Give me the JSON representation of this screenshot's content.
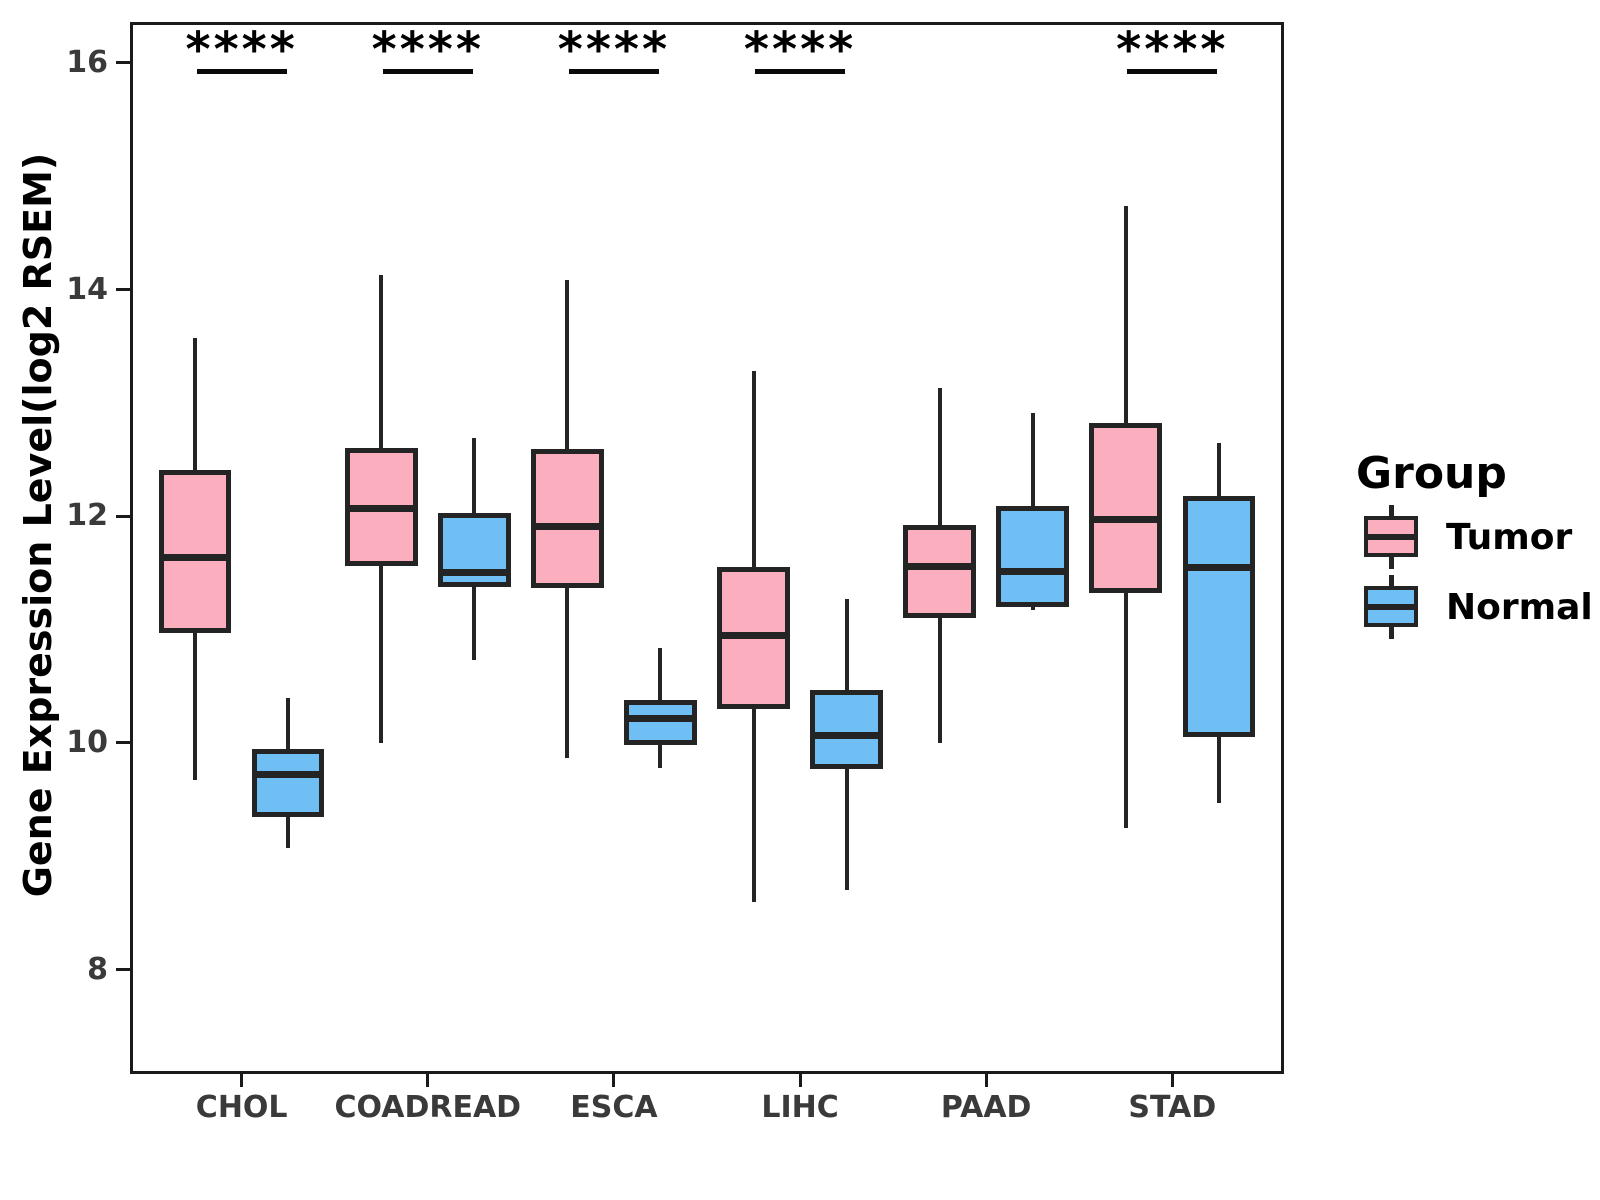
{
  "chart_data": {
    "type": "boxplot",
    "ylabel": "Gene Expression Level(log2 RSEM)",
    "categories": [
      "CHOL",
      "COADREAD",
      "ESCA",
      "LIHC",
      "PAAD",
      "STAD"
    ],
    "yticks": [
      16,
      14,
      12,
      10,
      8
    ],
    "ylim": [
      7.08,
      16.36
    ],
    "grid": "off",
    "colors": {
      "tumor_fill": "#FAAEBE",
      "normal_fill": "#6FBFF5",
      "line": "#242424"
    },
    "legend": {
      "title": "Group",
      "position": "right",
      "entries": [
        {
          "label": "Tumor",
          "color": "#FAAEBE"
        },
        {
          "label": "Normal",
          "color": "#6FBFF5"
        }
      ]
    },
    "significance": [
      "****",
      "****",
      "****",
      "****",
      "",
      "****"
    ],
    "series": [
      {
        "name": "Tumor",
        "color": "#FAAEBE",
        "boxes": [
          {
            "low": 9.67,
            "q1": 10.97,
            "med": 11.64,
            "q3": 12.41,
            "high": 13.57
          },
          {
            "low": 10.0,
            "q1": 11.56,
            "med": 12.07,
            "q3": 12.6,
            "high": 14.13
          },
          {
            "low": 9.87,
            "q1": 11.37,
            "med": 11.91,
            "q3": 12.59,
            "high": 14.08
          },
          {
            "low": 8.6,
            "q1": 10.3,
            "med": 10.95,
            "q3": 11.55,
            "high": 13.28
          },
          {
            "low": 10.0,
            "q1": 11.1,
            "med": 11.56,
            "q3": 11.92,
            "high": 13.13
          },
          {
            "low": 9.25,
            "q1": 11.32,
            "med": 11.97,
            "q3": 12.82,
            "high": 14.74
          }
        ]
      },
      {
        "name": "Normal",
        "color": "#6FBFF5",
        "boxes": [
          {
            "low": 9.07,
            "q1": 9.35,
            "med": 9.72,
            "q3": 9.95,
            "high": 10.4
          },
          {
            "low": 10.73,
            "q1": 11.38,
            "med": 11.5,
            "q3": 12.03,
            "high": 12.69
          },
          {
            "low": 9.78,
            "q1": 9.98,
            "med": 10.22,
            "q3": 10.38,
            "high": 10.84
          },
          {
            "low": 8.7,
            "q1": 9.77,
            "med": 10.07,
            "q3": 10.47,
            "high": 11.27
          },
          {
            "low": 11.17,
            "q1": 11.2,
            "med": 11.51,
            "q3": 12.09,
            "high": 12.91
          },
          {
            "low": 9.47,
            "q1": 10.05,
            "med": 11.55,
            "q3": 12.18,
            "high": 12.65
          }
        ]
      }
    ]
  }
}
